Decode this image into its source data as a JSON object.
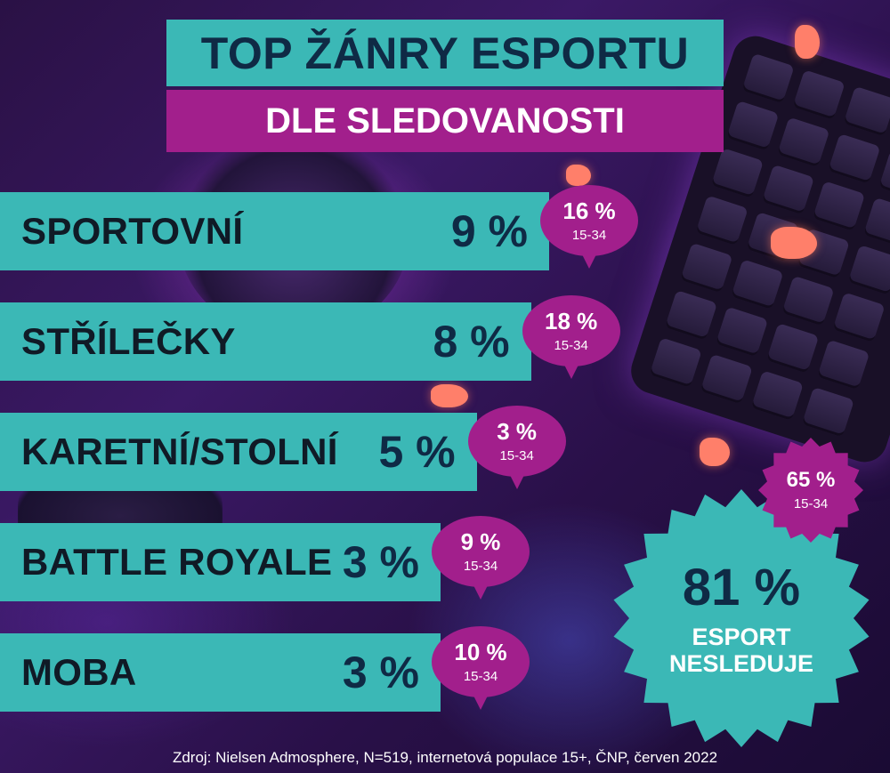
{
  "colors": {
    "teal": "#3bb8b6",
    "magenta": "#a21f8c",
    "navy": "#0f2a45",
    "white": "#ffffff"
  },
  "title": {
    "line1": "TOP ŽÁNRY ESPORTU",
    "line2": "DLE SLEDOVANOSTI"
  },
  "chart_data": {
    "type": "bar",
    "orientation": "horizontal",
    "value_unit": "%",
    "categories": [
      "SPORTOVNÍ",
      "STŘÍLEČKY",
      "KARETNÍ/STOLNÍ",
      "BATTLE ROYALE",
      "MOBA"
    ],
    "series": [
      {
        "values": [
          9,
          8,
          5,
          3,
          3
        ],
        "labels": [
          "9 %",
          "8 %",
          "5 %",
          "3 %",
          "3 %"
        ]
      },
      {
        "name": "15-34",
        "values": [
          16,
          18,
          3,
          9,
          10
        ],
        "labels": [
          "16 %",
          "18 %",
          "3 %",
          "9 %",
          "10 %"
        ]
      }
    ]
  },
  "highlight": {
    "value": "81 %",
    "label": "ESPORT NESLEDUJE",
    "youth_value": "65 %",
    "youth_note": "15-34"
  },
  "source": "Zdroj: Nielsen Admosphere, N=519, internetová populace 15+, ČNP, červen 2022"
}
